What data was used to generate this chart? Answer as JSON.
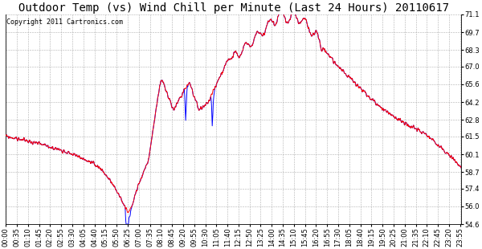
{
  "title": "Outdoor Temp (vs) Wind Chill per Minute (Last 24 Hours) 20110617",
  "copyright": "Copyright 2011 Cartronics.com",
  "ylim": [
    54.6,
    71.1
  ],
  "yticks": [
    54.6,
    56.0,
    57.4,
    58.7,
    60.1,
    61.5,
    62.8,
    64.2,
    65.6,
    67.0,
    68.3,
    69.7,
    71.1
  ],
  "xtick_labels": [
    "00:00",
    "00:35",
    "01:10",
    "01:45",
    "02:20",
    "02:55",
    "03:30",
    "04:05",
    "04:40",
    "05:15",
    "05:50",
    "06:25",
    "07:00",
    "07:35",
    "08:10",
    "08:45",
    "09:20",
    "09:55",
    "10:30",
    "11:05",
    "11:40",
    "12:15",
    "12:50",
    "13:25",
    "14:00",
    "14:35",
    "15:10",
    "15:45",
    "16:20",
    "16:55",
    "17:30",
    "18:05",
    "18:40",
    "19:15",
    "19:50",
    "20:25",
    "21:00",
    "21:35",
    "22:10",
    "22:45",
    "23:20",
    "23:55"
  ],
  "line_color_temp": "#ff0000",
  "line_color_chill": "#0000ff",
  "bg_color": "#ffffff",
  "grid_color": "#b0b0b0",
  "title_fontsize": 10,
  "copyright_fontsize": 6,
  "tick_fontsize": 6
}
